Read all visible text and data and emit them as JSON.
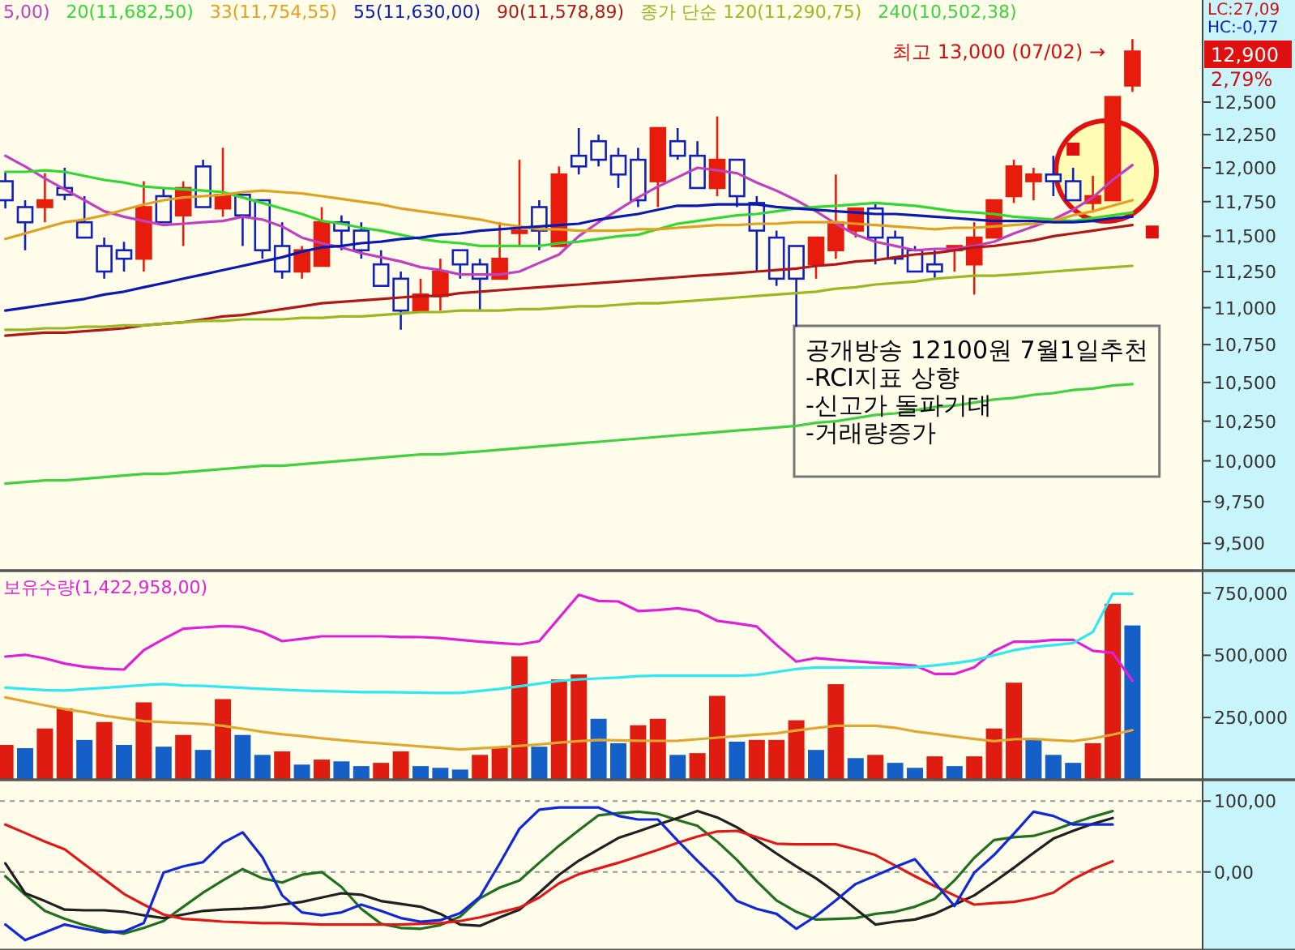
{
  "chart_data": [
    {
      "type": "candlestick",
      "categories": [
        null,
        null,
        null,
        null,
        null,
        null,
        null,
        null,
        null,
        null,
        null,
        null,
        null,
        null,
        null,
        null,
        null,
        null,
        null,
        null,
        null,
        null,
        null,
        null,
        null,
        null,
        null,
        null,
        null,
        null,
        null,
        null,
        null,
        null,
        null,
        null,
        null,
        null,
        null,
        null,
        null,
        null,
        null,
        null,
        null,
        null,
        null,
        null,
        null,
        null,
        null,
        null,
        null,
        null,
        null,
        null,
        null,
        null,
        null
      ],
      "ohlc": [
        [
          11900,
          11970,
          11700,
          11760
        ],
        [
          11710,
          11760,
          11400,
          11600
        ],
        [
          11710,
          11960,
          11600,
          11760
        ],
        [
          11850,
          12000,
          11760,
          11800
        ],
        [
          11600,
          11790,
          11490,
          11490
        ],
        [
          11430,
          11490,
          11200,
          11250
        ],
        [
          11400,
          11460,
          11250,
          11340
        ],
        [
          11340,
          11900,
          11250,
          11710
        ],
        [
          11790,
          11850,
          11600,
          11600
        ],
        [
          11650,
          11900,
          11430,
          11850
        ],
        [
          12010,
          12060,
          11710,
          11710
        ],
        [
          11700,
          12150,
          11640,
          11800
        ],
        [
          11800,
          11800,
          11430,
          11650
        ],
        [
          11760,
          11760,
          11340,
          11400
        ],
        [
          11430,
          11600,
          11200,
          11250
        ],
        [
          11250,
          11430,
          11200,
          11400
        ],
        [
          11290,
          11710,
          11290,
          11600
        ],
        [
          11600,
          11650,
          11400,
          11540
        ],
        [
          11540,
          11600,
          11340,
          11400
        ],
        [
          11300,
          11400,
          11150,
          11150
        ],
        [
          11200,
          11250,
          10850,
          10980
        ],
        [
          10980,
          11200,
          10980,
          11090
        ],
        [
          11080,
          11340,
          10980,
          11250
        ],
        [
          11400,
          11400,
          11200,
          11300
        ],
        [
          11300,
          11340,
          10980,
          11200
        ],
        [
          11200,
          11600,
          11200,
          11340
        ],
        [
          11530,
          12060,
          11430,
          11540
        ],
        [
          11710,
          11760,
          11400,
          11540
        ],
        [
          11430,
          12010,
          11430,
          11950
        ],
        [
          12090,
          12300,
          11950,
          12010
        ],
        [
          12200,
          12250,
          12010,
          12060
        ],
        [
          12090,
          12150,
          11850,
          11950
        ],
        [
          12060,
          12150,
          11710,
          11760
        ],
        [
          11900,
          12300,
          11710,
          12300
        ],
        [
          12200,
          12300,
          12060,
          12090
        ],
        [
          12090,
          12200,
          11850,
          11850
        ],
        [
          11850,
          12390,
          11790,
          12060
        ],
        [
          12060,
          12060,
          11710,
          11790
        ],
        [
          11740,
          11790,
          11250,
          11540
        ],
        [
          11490,
          11540,
          11150,
          11200
        ],
        [
          11430,
          11430,
          10870,
          11200
        ],
        [
          11300,
          11490,
          11200,
          11490
        ],
        [
          11400,
          11950,
          11340,
          11600
        ],
        [
          11540,
          11700,
          11490,
          11700
        ],
        [
          11700,
          11740,
          11300,
          11490
        ],
        [
          11490,
          11540,
          11300,
          11340
        ],
        [
          11400,
          11430,
          11250,
          11250
        ],
        [
          11300,
          11400,
          11200,
          11250
        ],
        [
          11400,
          11430,
          11250,
          11430
        ],
        [
          11300,
          11600,
          11090,
          11490
        ],
        [
          11490,
          11760,
          11490,
          11760
        ],
        [
          11790,
          12060,
          11740,
          12010
        ],
        [
          11900,
          12000,
          11760,
          11950
        ],
        [
          11950,
          12090,
          11790,
          11900
        ],
        [
          11900,
          12000,
          11760,
          11760
        ],
        [
          11740,
          11940,
          11670,
          11790
        ],
        [
          11760,
          12540,
          11760,
          12540
        ],
        [
          12630,
          13000,
          12580,
          12900
        ],
        null
      ],
      "colors": [
        "#1020b8",
        "#1020b8",
        "#e81c0c",
        "#1020b8",
        "#1020b8",
        "#1020b8",
        "#1020b8",
        "#e81c0c",
        "#1020b8",
        "#e81c0c",
        "#1020b8",
        "#e81c0c",
        "#1020b8",
        "#1020b8",
        "#1020b8",
        "#e81c0c",
        "#e81c0c",
        "#1020b8",
        "#1020b8",
        "#1020b8",
        "#1020b8",
        "#e81c0c",
        "#e81c0c",
        "#1020b8",
        "#1020b8",
        "#e81c0c",
        "#e81c0c",
        "#1020b8",
        "#e81c0c",
        "#1020b8",
        "#1020b8",
        "#1020b8",
        "#1020b8",
        "#e81c0c",
        "#1020b8",
        "#1020b8",
        "#e81c0c",
        "#1020b8",
        "#1020b8",
        "#1020b8",
        "#1020b8",
        "#e81c0c",
        "#e81c0c",
        "#e81c0c",
        "#1020b8",
        "#1020b8",
        "#1020b8",
        "#1020b8",
        "#e81c0c",
        "#e81c0c",
        "#e81c0c",
        "#e81c0c",
        "#e81c0c",
        "#1020b8",
        "#1020b8",
        "#e81c0c",
        "#e81c0c",
        "#e81c0c",
        null
      ],
      "series": [
        {
          "name": "5,00)",
          "type": "line",
          "color": "#c040c0",
          "values": [
            12090,
            12010,
            11920,
            11840,
            11760,
            11680,
            11640,
            11610,
            11580,
            11590,
            11600,
            11610,
            11640,
            11620,
            11570,
            11490,
            11450,
            11420,
            11380,
            11350,
            11320,
            11280,
            11260,
            11230,
            11230,
            11230,
            11250,
            11310,
            11370,
            11500,
            11600,
            11690,
            11780,
            11860,
            11930,
            12000,
            11980,
            11960,
            11890,
            11830,
            11760,
            11680,
            11590,
            11510,
            11460,
            11430,
            11400,
            11410,
            11410,
            11430,
            11460,
            11520,
            11570,
            11620,
            11690,
            11780,
            11910,
            12020,
            null
          ]
        },
        {
          "name": "20(11,682,50)",
          "type": "line",
          "color": "#30d830",
          "values": [
            11970,
            11970,
            11980,
            11970,
            11940,
            11910,
            11890,
            11860,
            11850,
            11840,
            11830,
            11820,
            11780,
            11740,
            11700,
            11660,
            11610,
            11590,
            11560,
            11540,
            11510,
            11480,
            11460,
            11450,
            11430,
            11430,
            11430,
            11430,
            11450,
            11460,
            11480,
            11500,
            11510,
            11550,
            11590,
            11610,
            11630,
            11650,
            11660,
            11680,
            11700,
            11710,
            11720,
            11730,
            11740,
            11730,
            11720,
            11700,
            11680,
            11670,
            11660,
            11640,
            11630,
            11620,
            11610,
            11630,
            11650,
            11670,
            null
          ]
        },
        {
          "name": "33(11,754,55)",
          "type": "line",
          "color": "#e0a020",
          "values": [
            11480,
            11520,
            11560,
            11600,
            11620,
            11650,
            11690,
            11730,
            11760,
            11780,
            11790,
            11800,
            11820,
            11830,
            11820,
            11810,
            11790,
            11770,
            11750,
            11730,
            11700,
            11680,
            11660,
            11640,
            11620,
            11590,
            11570,
            11550,
            11550,
            11540,
            11540,
            11540,
            11550,
            11550,
            11560,
            11570,
            11580,
            11580,
            11590,
            11590,
            11600,
            11600,
            11600,
            11590,
            11580,
            11570,
            11560,
            11550,
            11560,
            11560,
            11570,
            11580,
            11590,
            11610,
            11650,
            11680,
            11720,
            11760,
            null
          ]
        },
        {
          "name": "55(11,630,00)",
          "type": "line",
          "color": "#0a1ab0",
          "values": [
            10980,
            11000,
            11020,
            11040,
            11060,
            11090,
            11110,
            11140,
            11170,
            11200,
            11230,
            11260,
            11290,
            11320,
            11350,
            11390,
            11420,
            11430,
            11450,
            11460,
            11480,
            11490,
            11510,
            11520,
            11540,
            11550,
            11560,
            11570,
            11580,
            11590,
            11620,
            11640,
            11660,
            11690,
            11720,
            11720,
            11730,
            11730,
            11730,
            11710,
            11700,
            11690,
            11680,
            11670,
            11660,
            11660,
            11650,
            11640,
            11630,
            11620,
            11610,
            11610,
            11610,
            11600,
            11600,
            11610,
            11630,
            11640,
            null
          ]
        },
        {
          "name": "90(11,578,89)",
          "type": "line",
          "color": "#b01818",
          "values": [
            10810,
            10820,
            10830,
            10830,
            10840,
            10850,
            10860,
            10880,
            10890,
            10900,
            10920,
            10940,
            10950,
            10970,
            10990,
            11010,
            11030,
            11040,
            11050,
            11060,
            11070,
            11080,
            11080,
            11100,
            11110,
            11120,
            11130,
            11140,
            11150,
            11160,
            11170,
            11180,
            11190,
            11200,
            11210,
            11220,
            11230,
            11240,
            11250,
            11260,
            11270,
            11290,
            11300,
            11320,
            11330,
            11350,
            11370,
            11380,
            11400,
            11420,
            11430,
            11450,
            11470,
            11500,
            11520,
            11540,
            11560,
            11580,
            null
          ]
        },
        {
          "name": "종가 단순 120(11,290,75)",
          "type": "line",
          "color": "#9ab820",
          "values": [
            10850,
            10850,
            10860,
            10860,
            10870,
            10870,
            10880,
            10880,
            10890,
            10900,
            10910,
            10910,
            10920,
            10920,
            10920,
            10930,
            10930,
            10940,
            10940,
            10950,
            10960,
            10970,
            10970,
            10980,
            10980,
            10980,
            10990,
            10990,
            11000,
            11010,
            11010,
            11020,
            11030,
            11030,
            11040,
            11050,
            11060,
            11070,
            11080,
            11090,
            11100,
            11110,
            11130,
            11140,
            11160,
            11170,
            11180,
            11200,
            11210,
            11220,
            11220,
            11230,
            11240,
            11250,
            11260,
            11270,
            11280,
            11290,
            null
          ]
        },
        {
          "name": "240(10,502,38)",
          "type": "line",
          "color": "#40d040",
          "values": [
            9860,
            9870,
            9880,
            9880,
            9890,
            9900,
            9910,
            9920,
            9920,
            9930,
            9940,
            9950,
            9960,
            9970,
            9970,
            9980,
            9990,
            10000,
            10010,
            10020,
            10030,
            10040,
            10040,
            10050,
            10060,
            10070,
            10080,
            10090,
            10100,
            10110,
            10120,
            10130,
            10140,
            10150,
            10160,
            10170,
            10180,
            10190,
            10200,
            10210,
            10220,
            10240,
            10250,
            10270,
            10290,
            10300,
            10320,
            10340,
            10350,
            10370,
            10390,
            10400,
            10420,
            10430,
            10450,
            10460,
            10480,
            10490,
            null
          ]
        },
        {
          "type": "scatter",
          "marker": "square",
          "color": "#e01010",
          "values": [
            null,
            null,
            null,
            null,
            null,
            null,
            null,
            null,
            null,
            null,
            null,
            null,
            null,
            null,
            null,
            null,
            null,
            null,
            null,
            null,
            null,
            null,
            null,
            null,
            null,
            null,
            null,
            null,
            null,
            null,
            null,
            null,
            null,
            null,
            null,
            null,
            null,
            null,
            null,
            null,
            null,
            null,
            null,
            null,
            null,
            null,
            null,
            null,
            null,
            null,
            null,
            null,
            null,
            null,
            12140,
            null,
            null,
            null,
            11530
          ]
        }
      ],
      "log": "y",
      "ylim": [
        9340,
        13320
      ],
      "yticks": [
        {
          "value": 12500,
          "label": "12,500"
        },
        {
          "value": 12250,
          "label": "12,250"
        },
        {
          "value": 12000,
          "label": "12,000"
        },
        {
          "value": 11750,
          "label": "11,750"
        },
        {
          "value": 11500,
          "label": "11,500"
        },
        {
          "value": 11250,
          "label": "11,250"
        },
        {
          "value": 11000,
          "label": "11,000"
        },
        {
          "value": 10750,
          "label": "10,750"
        },
        {
          "value": 10500,
          "label": "10,500"
        },
        {
          "value": 10250,
          "label": "10,250"
        },
        {
          "value": 10000,
          "label": "10,000"
        },
        {
          "value": 9750,
          "label": "9,750"
        },
        {
          "value": 9500,
          "label": "9,500"
        }
      ],
      "legend": "top",
      "annotations": [
        "공개방송 12100원 7월1일추천",
        "-RCI지표 상향",
        "-신고가 돌파기대",
        "-거래량증가",
        "2,79%",
        "LC:27,09",
        "HC:-0,77",
        "최고 13,000 (07/02) →",
        "12,900"
      ]
    },
    {
      "type": "bar",
      "categories": [
        null,
        null,
        null,
        null,
        null,
        null,
        null,
        null,
        null,
        null,
        null,
        null,
        null,
        null,
        null,
        null,
        null,
        null,
        null,
        null,
        null,
        null,
        null,
        null,
        null,
        null,
        null,
        null,
        null,
        null,
        null,
        null,
        null,
        null,
        null,
        null,
        null,
        null,
        null,
        null,
        null,
        null,
        null,
        null,
        null,
        null,
        null,
        null,
        null,
        null,
        null,
        null,
        null,
        null,
        null,
        null,
        null,
        null,
        null
      ],
      "series": [
        {
          "type": "bar",
          "values": [
            140000,
            127000,
            206000,
            287000,
            160000,
            232000,
            140000,
            311000,
            133000,
            180000,
            120000,
            324000,
            180000,
            100000,
            114000,
            61000,
            81000,
            74000,
            55000,
            68000,
            114000,
            55000,
            48000,
            41000,
            100000,
            127000,
            496000,
            133000,
            403000,
            423000,
            245000,
            147000,
            219000,
            245000,
            100000,
            107000,
            337000,
            153000,
            160000,
            160000,
            239000,
            120000,
            384000,
            87000,
            100000,
            68000,
            48000,
            94000,
            55000,
            94000,
            206000,
            390000,
            160000,
            100000,
            68000,
            147000,
            707000,
            620000,
            null
          ],
          "colors": [
            "#e01c10",
            "#1560c8",
            "#e01c10",
            "#e01c10",
            "#1560c8",
            "#e01c10",
            "#1560c8",
            "#e01c10",
            "#1560c8",
            "#e01c10",
            "#1560c8",
            "#e01c10",
            "#1560c8",
            "#1560c8",
            "#e01c10",
            "#1560c8",
            "#e01c10",
            "#1560c8",
            "#1560c8",
            "#e01c10",
            "#e01c10",
            "#1560c8",
            "#1560c8",
            "#1560c8",
            "#e01c10",
            "#e01c10",
            "#e01c10",
            "#1560c8",
            "#e01c10",
            "#e01c10",
            "#1560c8",
            "#1560c8",
            "#e01c10",
            "#e01c10",
            "#1560c8",
            "#e01c10",
            "#e01c10",
            "#1560c8",
            "#e01c10",
            "#e01c10",
            "#e01c10",
            "#1560c8",
            "#e01c10",
            "#1560c8",
            "#e01c10",
            "#1560c8",
            "#1560c8",
            "#e01c10",
            "#1560c8",
            "#e01c10",
            "#e01c10",
            "#e01c10",
            "#1560c8",
            "#1560c8",
            "#1560c8",
            "#e01c10",
            "#e01c10",
            "#1560c8",
            null
          ]
        },
        {
          "name": "보유수량(1,422,958,00)",
          "type": "line",
          "color": "#e020d8",
          "values": [
            495000,
            502000,
            488000,
            467000,
            454000,
            447000,
            443000,
            520000,
            565000,
            607000,
            612000,
            617000,
            614000,
            593000,
            557000,
            566000,
            576000,
            576000,
            576000,
            576000,
            574000,
            573000,
            569000,
            562000,
            555000,
            549000,
            544000,
            557000,
            650000,
            743000,
            718000,
            716000,
            678000,
            682000,
            689000,
            678000,
            639000,
            628000,
            616000,
            542000,
            475000,
            489000,
            482000,
            476000,
            470000,
            465000,
            459000,
            425000,
            425000,
            452000,
            517000,
            555000,
            555000,
            562000,
            562000,
            518000,
            510000,
            397000,
            null
          ]
        },
        {
          "type": "line",
          "color": "#30e8f0",
          "values": [
            370000,
            365000,
            360000,
            359000,
            364000,
            369000,
            375000,
            380000,
            385000,
            379000,
            377000,
            373000,
            369000,
            365000,
            362000,
            359000,
            356000,
            354000,
            352000,
            352000,
            351000,
            350000,
            349000,
            349000,
            357000,
            365000,
            376000,
            386000,
            397000,
            403000,
            407000,
            411000,
            416000,
            418000,
            418000,
            418000,
            418000,
            418000,
            421000,
            433000,
            445000,
            451000,
            451000,
            451000,
            451000,
            451000,
            452000,
            460000,
            468000,
            480000,
            500000,
            520000,
            533000,
            541000,
            549000,
            594000,
            747000,
            747000,
            null
          ]
        },
        {
          "type": "line",
          "color": "#e0a830",
          "values": [
            331000,
            315000,
            299000,
            284000,
            272000,
            257000,
            246000,
            236000,
            232000,
            228000,
            224000,
            217000,
            205000,
            193000,
            183000,
            175000,
            167000,
            159000,
            152000,
            146000,
            140000,
            134000,
            128000,
            122000,
            126000,
            131000,
            136000,
            142000,
            149000,
            155000,
            160000,
            158000,
            157000,
            156000,
            157000,
            163000,
            169000,
            175000,
            181000,
            187000,
            198000,
            208000,
            217000,
            217000,
            217000,
            209000,
            194000,
            184000,
            174000,
            164000,
            155000,
            163000,
            164000,
            159000,
            155000,
            166000,
            182000,
            199000,
            null
          ]
        }
      ],
      "ylim": [
        0,
        840000
      ],
      "yticks": [
        {
          "value": 250000,
          "label": "250,000"
        },
        {
          "value": 500000,
          "label": "500,000"
        },
        {
          "value": 750000,
          "label": "750,000"
        }
      ],
      "legend": "top left"
    },
    {
      "type": "line",
      "categories": [
        null,
        null,
        null,
        null,
        null,
        null,
        null,
        null,
        null,
        null,
        null,
        null,
        null,
        null,
        null,
        null,
        null,
        null,
        null,
        null,
        null,
        null,
        null,
        null,
        null,
        null,
        null,
        null,
        null,
        null,
        null,
        null,
        null,
        null,
        null,
        null,
        null,
        null,
        null,
        null,
        null,
        null,
        null,
        null,
        null,
        null,
        null,
        null,
        null,
        null,
        null,
        null,
        null,
        null,
        null,
        null,
        null,
        null,
        null
      ],
      "series": [
        {
          "color": "#207020",
          "values": [
            -6,
            -32,
            -55,
            -66,
            -75,
            -82,
            -87,
            -79,
            -69,
            -49,
            -29,
            -12,
            4,
            -9,
            -15,
            -4,
            0,
            -21,
            -52,
            -73,
            -79,
            -80,
            -75,
            -63,
            -37,
            -22,
            -12,
            13,
            37,
            59,
            80,
            83,
            85,
            82,
            73,
            65,
            43,
            17,
            -13,
            -40,
            -56,
            -67,
            -66,
            -65,
            -59,
            -56,
            -49,
            -38,
            -12,
            20,
            45,
            49,
            51,
            59,
            69,
            78,
            86,
            null,
            null
          ]
        },
        {
          "color": "#202020",
          "values": [
            12,
            -30,
            -41,
            -53,
            -54,
            -54,
            -56,
            -61,
            -65,
            -60,
            -55,
            -53,
            -52,
            -50,
            -46,
            -42,
            -36,
            -30,
            -32,
            -41,
            -45,
            -49,
            -59,
            -74,
            -76,
            -64,
            -53,
            -29,
            -4,
            16,
            32,
            48,
            57,
            67,
            76,
            86,
            77,
            63,
            45,
            26,
            8,
            -9,
            -29,
            -52,
            -74,
            -70,
            -67,
            -59,
            -46,
            -33,
            -14,
            6,
            27,
            47,
            58,
            68,
            76,
            null,
            null
          ]
        },
        {
          "color": "#e01818",
          "values": [
            67,
            55,
            43,
            32,
            11,
            -10,
            -31,
            -46,
            -60,
            -66,
            -68,
            -70,
            -71,
            -72,
            -72,
            -73,
            -74,
            -74,
            -74,
            -74,
            -74,
            -73,
            -72,
            -69,
            -64,
            -57,
            -50,
            -36,
            -16,
            -3,
            5,
            13,
            22,
            31,
            41,
            50,
            57,
            58,
            49,
            40,
            39,
            39,
            39,
            32,
            24,
            9,
            -6,
            -20,
            -33,
            -46,
            -44,
            -42,
            -37,
            -29,
            -10,
            4,
            15,
            null,
            null
          ]
        },
        {
          "color": "#1028d8",
          "values": [
            -74,
            -96,
            -85,
            -74,
            -80,
            -85,
            -84,
            -72,
            -1,
            8,
            14,
            41,
            56,
            21,
            -33,
            -57,
            -61,
            -57,
            -46,
            -55,
            -65,
            -70,
            -68,
            -58,
            -35,
            12,
            61,
            88,
            91,
            91,
            91,
            79,
            74,
            74,
            44,
            16,
            -11,
            -41,
            -52,
            -59,
            -80,
            -62,
            -40,
            -17,
            -5,
            7,
            18,
            -15,
            -48,
            -1,
            24,
            54,
            85,
            79,
            67,
            67,
            67,
            null,
            null
          ]
        }
      ],
      "ylim": [
        -110,
        130
      ],
      "yticks": [
        {
          "value": 100,
          "label": "100,00"
        },
        {
          "value": 0,
          "label": "0,00"
        }
      ],
      "grid": "y"
    }
  ]
}
